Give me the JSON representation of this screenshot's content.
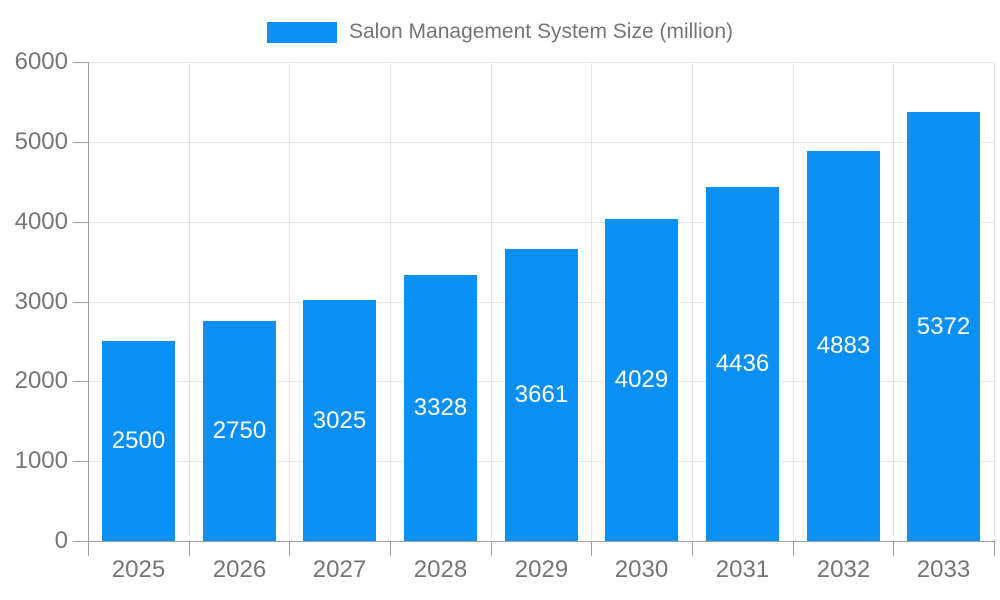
{
  "chart_data": {
    "type": "bar",
    "title": "Salon Management System Size (million)",
    "categories": [
      "2025",
      "2026",
      "2027",
      "2028",
      "2029",
      "2030",
      "2031",
      "2032",
      "2033"
    ],
    "values": [
      2500,
      2750,
      3025,
      3328,
      3661,
      4029,
      4436,
      4883,
      5372
    ],
    "xlabel": "",
    "ylabel": "",
    "ylim": [
      0,
      6000
    ],
    "y_ticks": [
      0,
      1000,
      2000,
      3000,
      4000,
      5000,
      6000
    ],
    "grid": true,
    "legend_position": "top-center",
    "bar_labels_inside": true,
    "colors": {
      "bar": "#0A90F5",
      "axis_line": "#9e9e9e",
      "gridline": "#e6e6e6",
      "axis_text": "#757575",
      "bar_label_text": "#ffffff",
      "background": "#ffffff"
    }
  },
  "legend": {
    "label": "Salon Management System Size (million)"
  }
}
